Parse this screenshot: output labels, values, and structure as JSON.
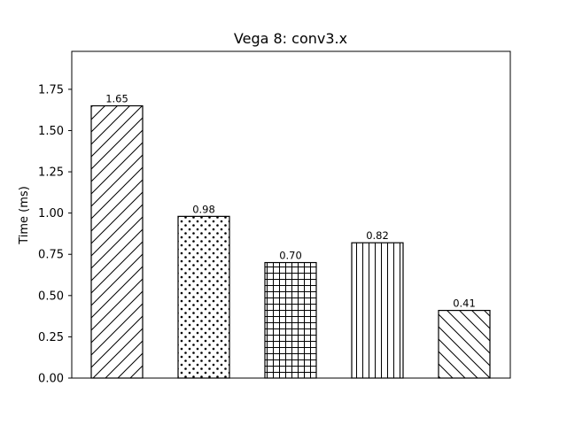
{
  "chart_data": {
    "type": "bar",
    "title": "Vega 8: conv3.x",
    "xlabel": "",
    "ylabel": "Time (ms)",
    "ylim": [
      0,
      1.98
    ],
    "yticks": [
      "0.00",
      "0.25",
      "0.50",
      "0.75",
      "1.00",
      "1.25",
      "1.50",
      "1.75"
    ],
    "grid": false,
    "values": [
      1.65,
      0.98,
      0.7,
      0.82,
      0.41
    ],
    "value_labels": [
      "1.65",
      "0.98",
      "0.70",
      "0.82",
      "0.41"
    ],
    "hatches": [
      "diagonal-forward",
      "dots",
      "grid",
      "vertical",
      "diagonal-back"
    ],
    "bar_fill": "#ffffff",
    "edge_color": "#000000"
  }
}
